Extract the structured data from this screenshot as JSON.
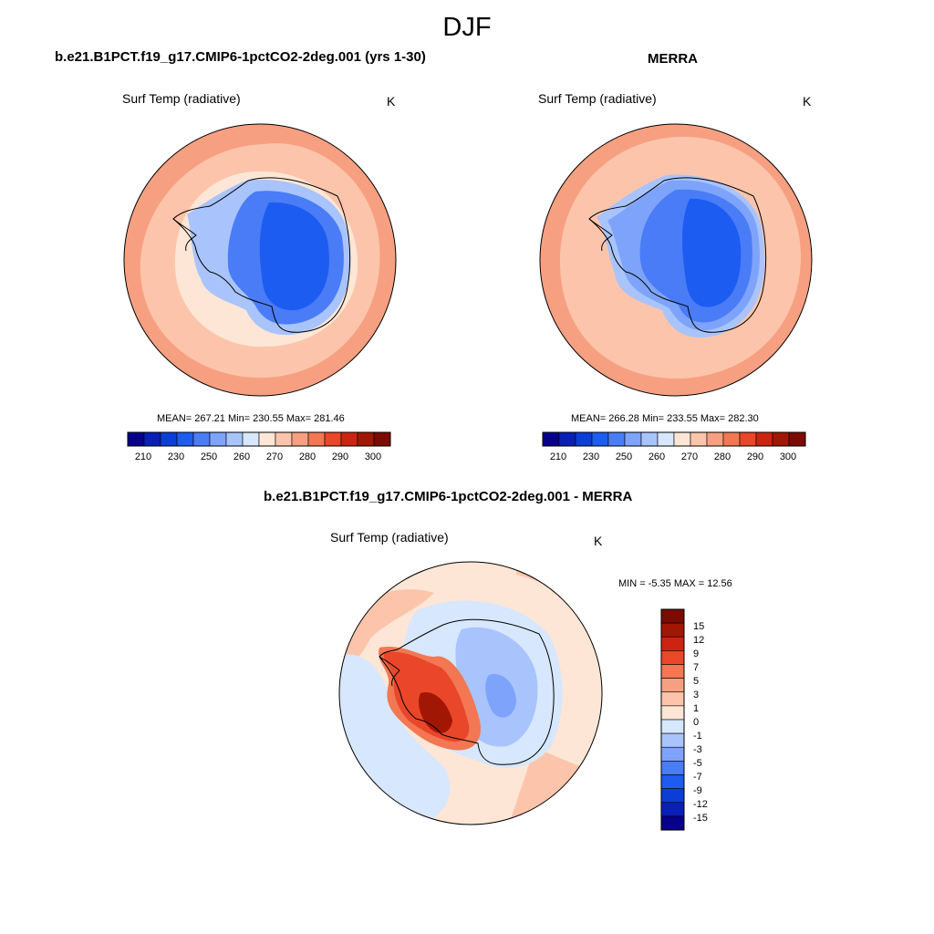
{
  "figure": {
    "season": "DJF"
  },
  "palettes": {
    "abs": [
      "#08008a",
      "#0a1fb5",
      "#0b3ed6",
      "#1d5cf0",
      "#4a7cf7",
      "#7ea3fb",
      "#a9c4fc",
      "#d7e7fe",
      "#fee6d6",
      "#fcc5ab",
      "#f7a081",
      "#f27752",
      "#e9462a",
      "#cc2410",
      "#a21703",
      "#7c0b02"
    ],
    "diff": [
      "#08008a",
      "#0a1fb5",
      "#0b3ed6",
      "#1d5cf0",
      "#4a7cf7",
      "#7ea3fb",
      "#a9c4fc",
      "#d7e7fe",
      "#fee6d6",
      "#fcc5ab",
      "#f7a081",
      "#f27752",
      "#e9462a",
      "#cc2410",
      "#a21703",
      "#7c0b02"
    ]
  },
  "panels": {
    "model": {
      "title": "b.e21.B1PCT.f19_g17.CMIP6-1pctCO2-2deg.001 (yrs 1-30)",
      "subtitle": "Surf Temp (radiative)",
      "units": "K",
      "stats": "MEAN= 267.21  Min= 230.55  Max= 281.46"
    },
    "obs": {
      "title": "MERRA",
      "subtitle": "Surf Temp (radiative)",
      "units": "K",
      "stats": "MEAN= 266.28  Min= 233.55  Max= 282.30"
    },
    "diff": {
      "title": "b.e21.B1PCT.f19_g17.CMIP6-1pctCO2-2deg.001 - MERRA",
      "subtitle": "Surf Temp (radiative)",
      "units": "K",
      "stats": "MIN =  -5.35 MAX =  12.56"
    }
  },
  "chart_data": [
    {
      "type": "heatmap",
      "projection": "south polar stereographic",
      "title": "b.e21.B1PCT.f19_g17.CMIP6-1pctCO2-2deg.001 (yrs 1-30)",
      "variable": "Surf Temp (radiative)",
      "units": "K",
      "mean": 267.21,
      "min": 230.55,
      "max": 281.46,
      "colorbar_ticks": [
        "210",
        "230",
        "250",
        "260",
        "270",
        "280",
        "290",
        "300"
      ]
    },
    {
      "type": "heatmap",
      "projection": "south polar stereographic",
      "title": "MERRA",
      "variable": "Surf Temp (radiative)",
      "units": "K",
      "mean": 266.28,
      "min": 233.55,
      "max": 282.3,
      "colorbar_ticks": [
        "210",
        "230",
        "250",
        "260",
        "270",
        "280",
        "290",
        "300"
      ]
    },
    {
      "type": "heatmap",
      "projection": "south polar stereographic",
      "title": "b.e21.B1PCT.f19_g17.CMIP6-1pctCO2-2deg.001 - MERRA",
      "variable": "Surf Temp (radiative)",
      "units": "K",
      "min": -5.35,
      "max": 12.56,
      "colorbar_ticks": [
        "15",
        "12",
        "9",
        "7",
        "5",
        "3",
        "1",
        "0",
        "-1",
        "-3",
        "-5",
        "-7",
        "-9",
        "-12",
        "-15"
      ]
    }
  ]
}
